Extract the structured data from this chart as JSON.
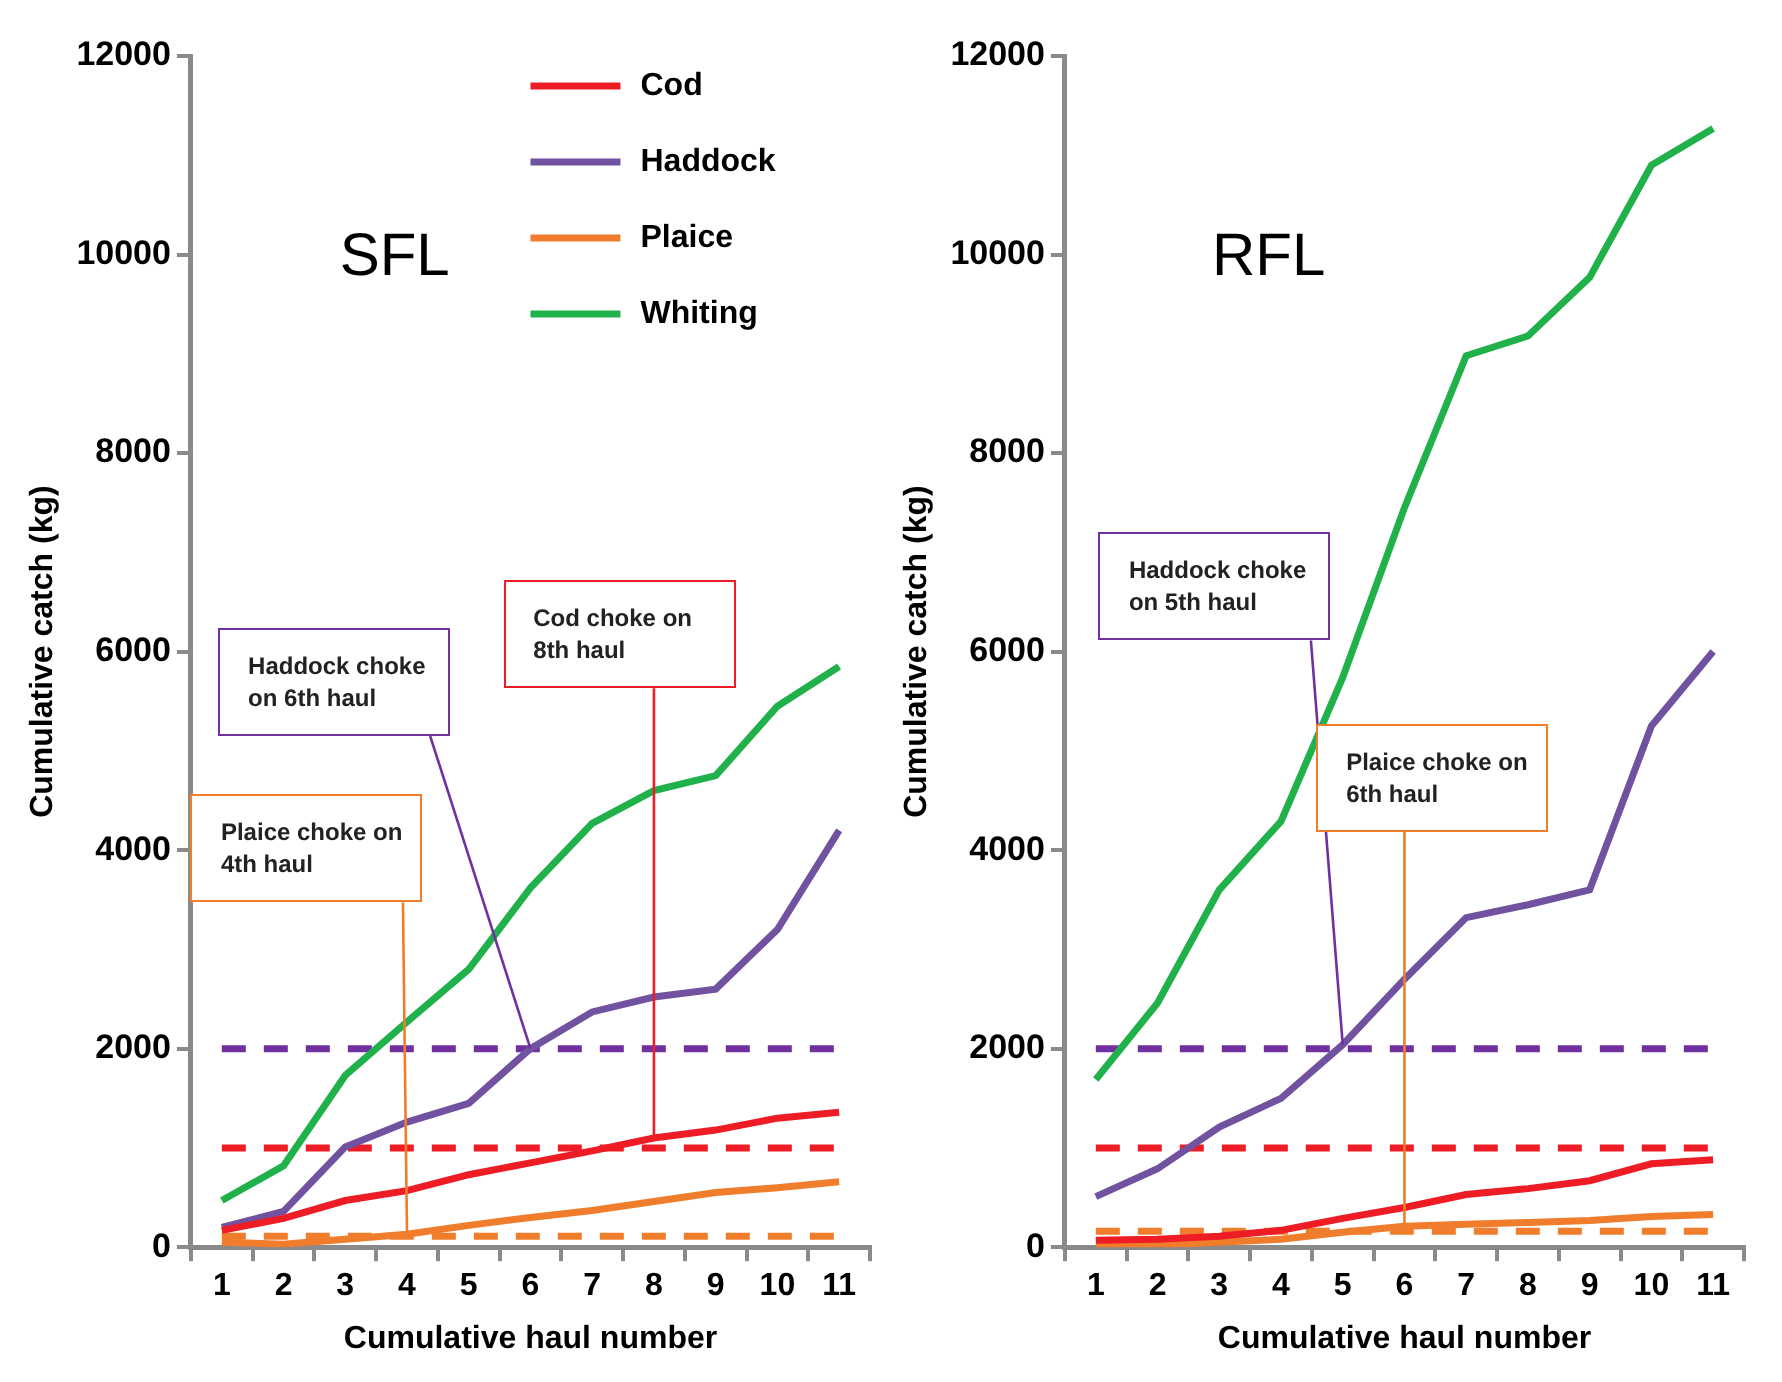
{
  "chart_data": [
    {
      "type": "line",
      "title": "SFL",
      "xlabel": "Cumulative haul number",
      "ylabel": "Cumulative catch (kg)",
      "categories": [
        "1",
        "2",
        "3",
        "4",
        "5",
        "6",
        "7",
        "8",
        "9",
        "10",
        "11"
      ],
      "ylim": [
        0,
        12000
      ],
      "yticks": [
        0,
        2000,
        4000,
        6000,
        8000,
        10000,
        12000
      ],
      "grid": false,
      "legend": "top",
      "line_style": "solid",
      "marker": "none",
      "series": [
        {
          "name": "Cod",
          "color": "#ee1c25",
          "values": [
            170,
            290,
            470,
            570,
            730,
            850,
            970,
            1100,
            1180,
            1300,
            1360
          ]
        },
        {
          "name": "Haddock",
          "color": "#7052a0",
          "values": [
            200,
            360,
            1010,
            1260,
            1450,
            2000,
            2370,
            2520,
            2600,
            3200,
            4200
          ]
        },
        {
          "name": "Plaice",
          "color": "#ef7d2c",
          "values": [
            50,
            30,
            80,
            130,
            220,
            300,
            370,
            460,
            550,
            600,
            660
          ]
        },
        {
          "name": "Whiting",
          "color": "#21b14b",
          "values": [
            470,
            820,
            1730,
            2270,
            2800,
            3620,
            4270,
            4600,
            4750,
            5450,
            5850
          ]
        }
      ],
      "ref_lines": [
        {
          "axis": "y",
          "value": 2000,
          "color": "#7030a0",
          "line_style": "dashed"
        },
        {
          "axis": "y",
          "value": 1000,
          "color": "#ee1c25",
          "line_style": "dashed"
        },
        {
          "axis": "y",
          "value": 110,
          "color": "#ef7d2c",
          "line_style": "dashed"
        }
      ],
      "annotations": [
        {
          "text": "Haddock choke on 6th haul",
          "x": "6",
          "y": 2000
        },
        {
          "text": "Cod choke on 8th haul",
          "x": "8",
          "y": 1100
        },
        {
          "text": "Plaice choke on 4th haul",
          "x": "4",
          "y": 130
        }
      ]
    },
    {
      "type": "line",
      "title": "RFL",
      "xlabel": "Cumulative haul number",
      "ylabel": "Cumulative catch (kg)",
      "categories": [
        "1",
        "2",
        "3",
        "4",
        "5",
        "6",
        "7",
        "8",
        "9",
        "10",
        "11"
      ],
      "ylim": [
        0,
        12000
      ],
      "yticks": [
        0,
        2000,
        4000,
        6000,
        8000,
        10000,
        12000
      ],
      "grid": false,
      "legend": false,
      "line_style": "solid",
      "marker": "none",
      "series": [
        {
          "color": "#ee1c25",
          "values": [
            70,
            80,
            110,
            170,
            290,
            400,
            530,
            590,
            670,
            840,
            880
          ]
        },
        {
          "color": "#7052a0",
          "values": [
            510,
            790,
            1210,
            1500,
            2040,
            2700,
            3320,
            3450,
            3600,
            5250,
            6000
          ]
        },
        {
          "color": "#ef7d2c",
          "values": [
            10,
            20,
            50,
            80,
            150,
            210,
            230,
            250,
            270,
            310,
            330
          ]
        },
        {
          "color": "#21b14b",
          "values": [
            1690,
            2460,
            3600,
            4290,
            5740,
            7450,
            8980,
            9180,
            9770,
            10900,
            11270
          ]
        }
      ],
      "ref_lines": [
        {
          "axis": "y",
          "value": 2000,
          "color": "#7030a0",
          "line_style": "dashed"
        },
        {
          "axis": "y",
          "value": 1000,
          "color": "#ee1c25",
          "line_style": "dashed"
        },
        {
          "axis": "y",
          "value": 160,
          "color": "#ef7d2c",
          "line_style": "dashed"
        }
      ],
      "annotations": [
        {
          "text": "Haddock choke on 5th haul",
          "x": "5",
          "y": 2040
        },
        {
          "text": "Plaice choke on 6th haul",
          "x": "6",
          "y": 210
        }
      ]
    }
  ]
}
